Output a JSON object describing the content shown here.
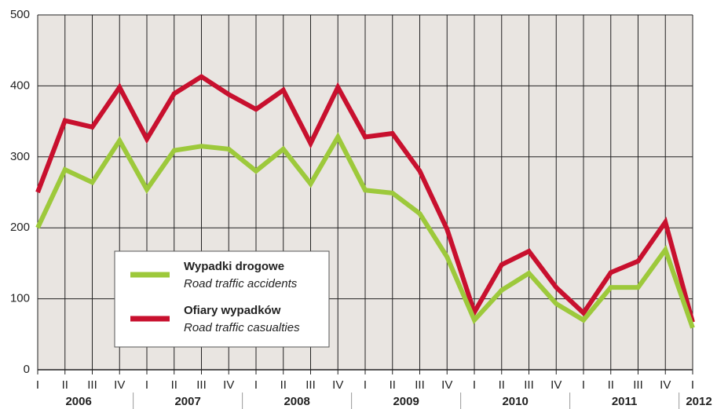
{
  "chart_data": {
    "type": "line",
    "categories": [
      "I",
      "II",
      "III",
      "IV",
      "I",
      "II",
      "III",
      "IV",
      "I",
      "II",
      "III",
      "IV",
      "I",
      "II",
      "III",
      "IV",
      "I",
      "II",
      "III",
      "IV",
      "I",
      "II",
      "III",
      "IV",
      "I"
    ],
    "years": [
      "2006",
      "2007",
      "2008",
      "2009",
      "2010",
      "2011",
      "2012"
    ],
    "series": [
      {
        "name": "Wypadki drogowe",
        "name_en": "Road traffic accidents",
        "color": "#9dc93b",
        "values": [
          200,
          282,
          264,
          323,
          254,
          309,
          315,
          311,
          280,
          311,
          262,
          328,
          253,
          249,
          220,
          159,
          70,
          112,
          136,
          93,
          70,
          116,
          116,
          169,
          59
        ]
      },
      {
        "name": "Ofiary wypadków",
        "name_en": "Road traffic casualties",
        "color": "#c8102e",
        "values": [
          250,
          351,
          342,
          398,
          325,
          389,
          413,
          388,
          367,
          394,
          319,
          398,
          328,
          333,
          280,
          198,
          81,
          148,
          167,
          116,
          80,
          137,
          153,
          208,
          67
        ]
      }
    ],
    "ylim": [
      0,
      500
    ],
    "yticks": [
      0,
      100,
      200,
      300,
      400,
      500
    ],
    "grid": true
  }
}
